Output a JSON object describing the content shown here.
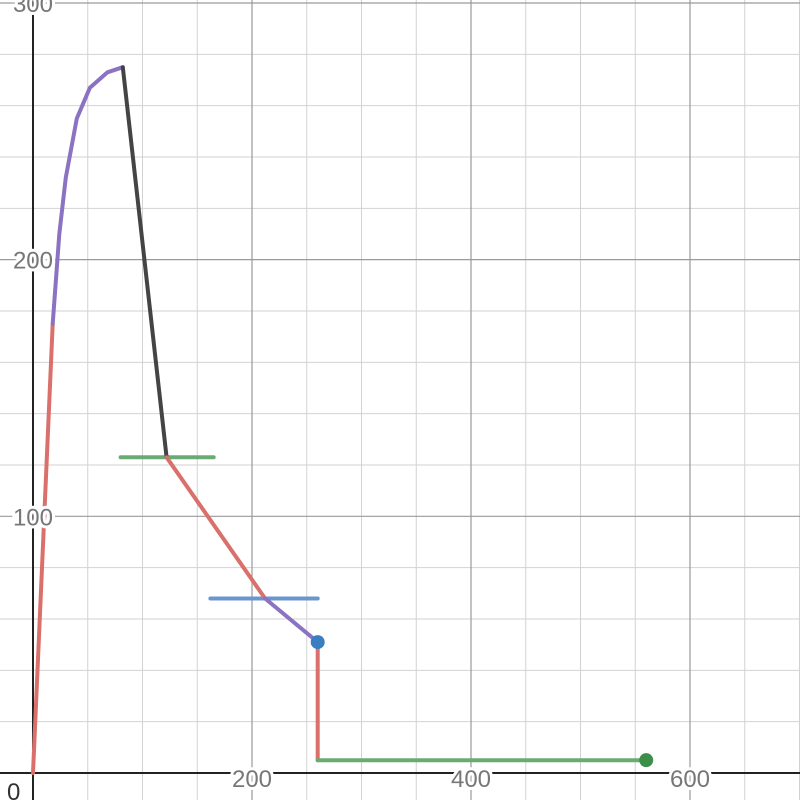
{
  "chart_data": {
    "type": "line",
    "title": "",
    "xlabel": "",
    "ylabel": "",
    "xlim": [
      -30,
      700
    ],
    "ylim": [
      0,
      300
    ],
    "grid": true,
    "x_ticks": [
      {
        "value": 200,
        "label": "200"
      },
      {
        "value": 400,
        "label": "400"
      },
      {
        "value": 600,
        "label": "600"
      }
    ],
    "y_ticks": [
      {
        "value": 100,
        "label": "100"
      },
      {
        "value": 200,
        "label": "200"
      },
      {
        "value": 300,
        "label": "300"
      }
    ],
    "origin_label": "0",
    "segments": [
      {
        "color": "#d9706b",
        "points": [
          [
            0,
            0
          ],
          [
            18,
            175
          ]
        ]
      },
      {
        "color": "#8b72c2",
        "points": [
          [
            18,
            175
          ],
          [
            24,
            210
          ],
          [
            30,
            232
          ],
          [
            40,
            255
          ],
          [
            52,
            267
          ],
          [
            68,
            273
          ],
          [
            82,
            275
          ]
        ]
      },
      {
        "color": "#444444",
        "points": [
          [
            82,
            275
          ],
          [
            122,
            123
          ]
        ]
      },
      {
        "color": "#d9706b",
        "points": [
          [
            122,
            123
          ],
          [
            212,
            68
          ]
        ]
      },
      {
        "color": "#8b72c2",
        "points": [
          [
            212,
            68
          ],
          [
            260,
            51
          ]
        ]
      },
      {
        "color": "#d9706b",
        "points": [
          [
            260,
            51
          ],
          [
            260,
            5
          ]
        ]
      },
      {
        "color": "#6aab74",
        "points": [
          [
            260,
            5
          ],
          [
            560,
            5
          ]
        ]
      }
    ],
    "reference_lines": [
      {
        "color": "#6aab74",
        "y": 123,
        "x_from": 80,
        "x_to": 165
      },
      {
        "color": "#6b96cc",
        "y": 68,
        "x_from": 162,
        "x_to": 260
      }
    ],
    "points": [
      {
        "color": "#3a7dc1",
        "x": 260,
        "y": 51
      },
      {
        "color": "#3c8f48",
        "x": 560,
        "y": 5
      }
    ]
  }
}
